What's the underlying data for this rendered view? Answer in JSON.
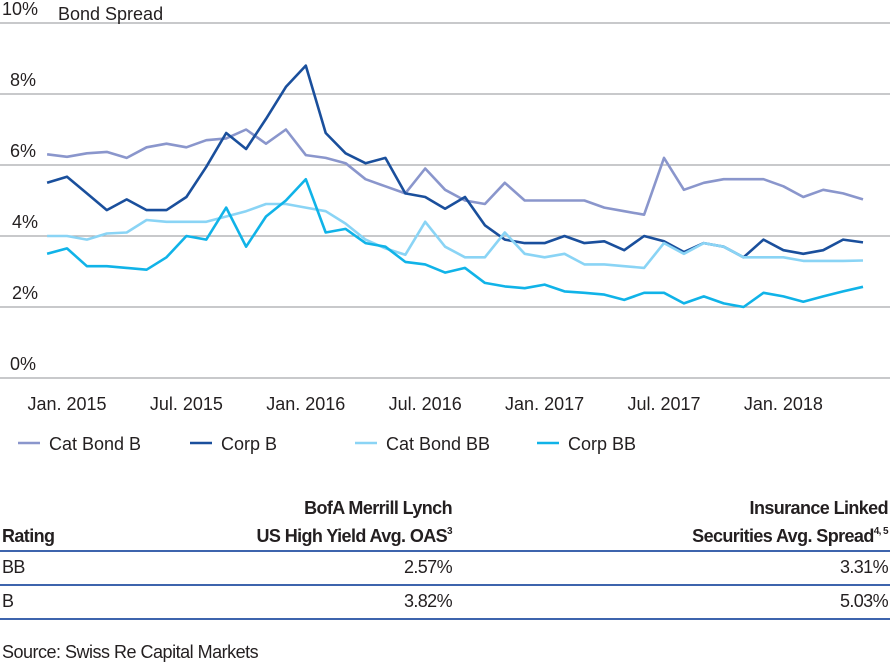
{
  "chart_data": {
    "type": "line",
    "title": "Bond Spread",
    "ylim": [
      0,
      10
    ],
    "yticks": [
      "0%",
      "2%",
      "4%",
      "6%",
      "8%",
      "10%"
    ],
    "ytick_values": [
      0,
      2,
      4,
      6,
      8,
      10
    ],
    "xticks": [
      {
        "label": "Jan. 2015",
        "date": "2015-01"
      },
      {
        "label": "Jul. 2015",
        "date": "2015-07"
      },
      {
        "label": "Jan. 2016",
        "date": "2016-01"
      },
      {
        "label": "Jul. 2016",
        "date": "2016-07"
      },
      {
        "label": "Jan. 2017",
        "date": "2017-01"
      },
      {
        "label": "Jul. 2017",
        "date": "2017-07"
      },
      {
        "label": "Jan. 2018",
        "date": "2018-01"
      }
    ],
    "grid": true,
    "legend_position": "bottom",
    "x": [
      "2014-12",
      "2015-01",
      "2015-02",
      "2015-03",
      "2015-04",
      "2015-05",
      "2015-06",
      "2015-07",
      "2015-08",
      "2015-09",
      "2015-10",
      "2015-11",
      "2015-12",
      "2016-01",
      "2016-02",
      "2016-03",
      "2016-04",
      "2016-05",
      "2016-06",
      "2016-07",
      "2016-08",
      "2016-09",
      "2016-10",
      "2016-11",
      "2016-12",
      "2017-01",
      "2017-02",
      "2017-03",
      "2017-04",
      "2017-05",
      "2017-06",
      "2017-07",
      "2017-08",
      "2017-09",
      "2017-10",
      "2017-11",
      "2017-12",
      "2018-01",
      "2018-02",
      "2018-03",
      "2018-04",
      "2018-05"
    ],
    "series": [
      {
        "name": "Cat Bond B",
        "color": "#8a96cc",
        "values": [
          6.3,
          6.23,
          6.33,
          6.37,
          6.2,
          6.5,
          6.6,
          6.5,
          6.7,
          6.75,
          7.0,
          6.6,
          7.0,
          6.28,
          6.2,
          6.05,
          5.6,
          5.4,
          5.2,
          5.9,
          5.3,
          5.0,
          4.9,
          5.5,
          5.0,
          5.0,
          5.0,
          5.0,
          4.8,
          4.7,
          4.6,
          6.2,
          5.3,
          5.5,
          5.6,
          5.6,
          5.6,
          5.4,
          5.1,
          5.3,
          5.2,
          5.03
        ]
      },
      {
        "name": "Corp B",
        "color": "#1a4f9c",
        "values": [
          5.5,
          5.67,
          5.2,
          4.73,
          5.03,
          4.73,
          4.73,
          5.1,
          5.95,
          6.9,
          6.45,
          7.3,
          8.2,
          8.8,
          6.9,
          6.33,
          6.05,
          6.2,
          5.2,
          5.1,
          4.77,
          5.1,
          4.3,
          3.9,
          3.8,
          3.8,
          4.0,
          3.8,
          3.85,
          3.6,
          4.0,
          3.85,
          3.55,
          3.8,
          3.7,
          3.4,
          3.9,
          3.6,
          3.5,
          3.6,
          3.9,
          3.82
        ]
      },
      {
        "name": "Cat Bond BB",
        "color": "#8ad4f5",
        "values": [
          4.0,
          4.0,
          3.9,
          4.07,
          4.1,
          4.45,
          4.4,
          4.4,
          4.4,
          4.55,
          4.7,
          4.9,
          4.9,
          4.8,
          4.7,
          4.35,
          3.9,
          3.65,
          3.47,
          4.4,
          3.7,
          3.4,
          3.4,
          4.1,
          3.5,
          3.4,
          3.5,
          3.2,
          3.2,
          3.15,
          3.1,
          3.8,
          3.5,
          3.8,
          3.7,
          3.4,
          3.4,
          3.4,
          3.3,
          3.3,
          3.3,
          3.31
        ]
      },
      {
        "name": "Corp BB",
        "color": "#10b3e8",
        "values": [
          3.5,
          3.65,
          3.15,
          3.15,
          3.1,
          3.05,
          3.4,
          4.0,
          3.9,
          4.8,
          3.7,
          4.55,
          5.0,
          5.6,
          4.1,
          4.2,
          3.8,
          3.7,
          3.27,
          3.2,
          2.97,
          3.1,
          2.68,
          2.58,
          2.53,
          2.63,
          2.44,
          2.4,
          2.35,
          2.2,
          2.4,
          2.4,
          2.1,
          2.3,
          2.1,
          2.0,
          2.4,
          2.3,
          2.15,
          2.3,
          2.44,
          2.57
        ]
      }
    ]
  },
  "table": {
    "headers": {
      "rating": "Rating",
      "col2_line1": "BofA Merrill Lynch",
      "col2_line2": "US High Yield Avg. OAS",
      "col2_sup": "3",
      "col3_line1": "Insurance Linked",
      "col3_line2": "Securities Avg. Spread",
      "col3_sup": "4, 5"
    },
    "rows": [
      {
        "rating": "BB",
        "oas": "2.57%",
        "ils": "3.31%"
      },
      {
        "rating": "B",
        "oas": "3.82%",
        "ils": "5.03%"
      }
    ]
  },
  "source": "Source: Swiss Re Capital Markets"
}
